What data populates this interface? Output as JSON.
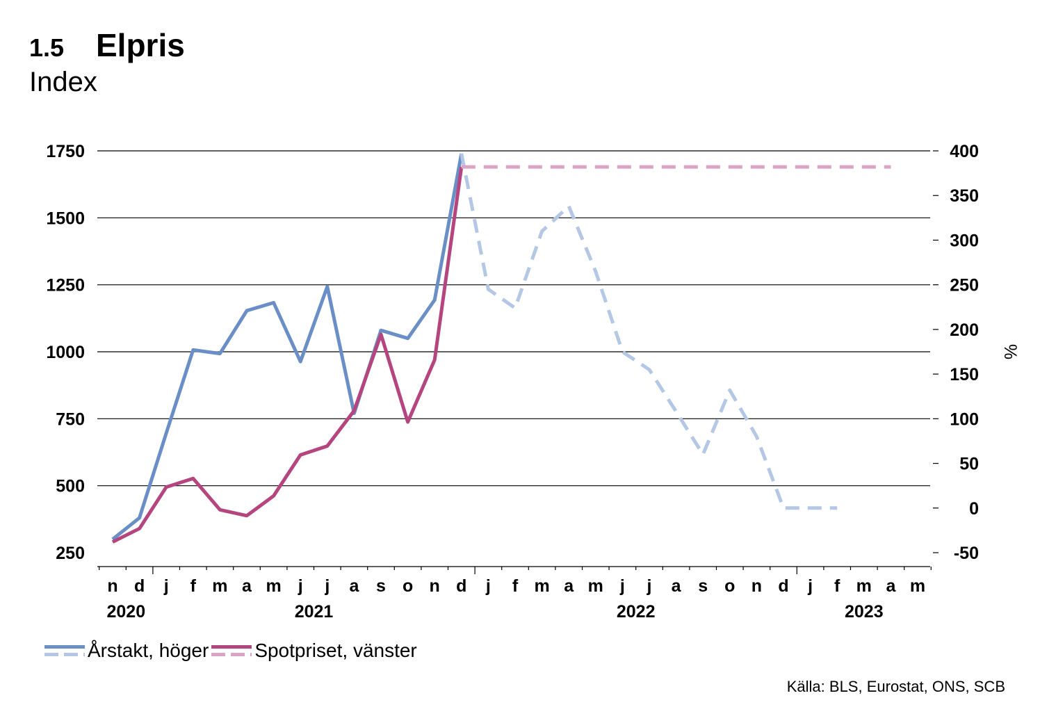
{
  "figure": {
    "number": "1.5",
    "title": "Elpris",
    "subtitle": "Index"
  },
  "legend": {
    "arstakt": "Årstakt, höger",
    "spot": "Spotpriset, vänster"
  },
  "source": "Källa: BLS, Eurostat, ONS, SCB",
  "colors": {
    "arstakt": "#6a8fc6",
    "arstakt_forecast": "#b4c7e4",
    "spot": "#b5457f",
    "spot_forecast": "#dca4c4"
  },
  "chart_data": {
    "type": "line",
    "categories": [
      "n",
      "d",
      "j",
      "f",
      "m",
      "a",
      "m",
      "j",
      "j",
      "a",
      "s",
      "o",
      "n",
      "d",
      "j",
      "f",
      "m",
      "a",
      "m",
      "j",
      "j",
      "a",
      "s",
      "o",
      "n",
      "d",
      "j",
      "f",
      "m",
      "a",
      "m"
    ],
    "year_labels": [
      {
        "label": "2020",
        "index": 0.5
      },
      {
        "label": "2021",
        "index": 7.5
      },
      {
        "label": "2022",
        "index": 19.5
      },
      {
        "label": "2023",
        "index": 28
      }
    ],
    "ylim_left": [
      250,
      1750
    ],
    "yticks_left": [
      250,
      500,
      750,
      1000,
      1250,
      1500,
      1750
    ],
    "ylim_right": [
      -50,
      400
    ],
    "yticks_right": [
      -50,
      0,
      50,
      100,
      150,
      200,
      250,
      300,
      350,
      400
    ],
    "ylabel_right": "%",
    "grid": true,
    "series": [
      {
        "name": "Årstakt, höger",
        "axis": "right",
        "style": "solid",
        "x": [
          0,
          1,
          2,
          3,
          4,
          5,
          6,
          7,
          8,
          9,
          10,
          11,
          12,
          13
        ],
        "values": [
          -35,
          -11,
          84,
          177,
          173,
          221,
          230,
          164,
          248,
          106,
          199,
          190,
          233,
          397
        ]
      },
      {
        "name": "Årstakt, höger",
        "axis": "right",
        "style": "dashed",
        "x": [
          13,
          14,
          15,
          16,
          17,
          18,
          19,
          20,
          21,
          22,
          23,
          24,
          25,
          26,
          27
        ],
        "values": [
          397,
          245,
          224,
          310,
          338,
          265,
          175,
          155,
          108,
          60,
          132,
          80,
          0,
          0,
          0
        ]
      },
      {
        "name": "Spotpriset, vänster",
        "axis": "left",
        "style": "solid",
        "x": [
          0,
          1,
          2,
          3,
          4,
          5,
          6,
          7,
          8,
          9,
          10,
          11,
          12,
          13
        ],
        "values": [
          290,
          340,
          495,
          527,
          410,
          388,
          462,
          615,
          648,
          780,
          1065,
          738,
          970,
          1690
        ]
      },
      {
        "name": "Spotpriset, vänster",
        "axis": "left",
        "style": "dashed",
        "x": [
          13,
          14,
          15,
          16,
          17,
          18,
          19,
          20,
          21,
          22,
          23,
          24,
          25,
          26,
          27,
          28,
          29
        ],
        "values": [
          1690,
          1690,
          1690,
          1690,
          1690,
          1690,
          1690,
          1690,
          1690,
          1690,
          1690,
          1690,
          1690,
          1690,
          1690,
          1690,
          1690
        ]
      }
    ]
  }
}
